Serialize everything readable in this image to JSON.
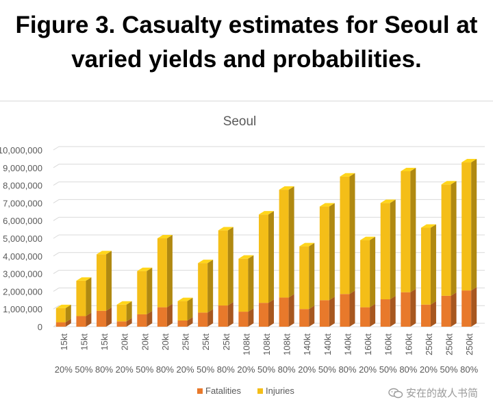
{
  "figure": {
    "title_line1": "Figure 3. Casualty estimates for Seoul at",
    "title_line2": "varied yields and probabilities."
  },
  "watermark": {
    "text": "安在的故人书简",
    "icon": "wechat-icon"
  },
  "chart_data": {
    "type": "bar",
    "stacked": true,
    "render": "3d-column",
    "title": "Seoul",
    "categories": [
      {
        "yield": "15kt",
        "probability": "20%"
      },
      {
        "yield": "15kt",
        "probability": "50%"
      },
      {
        "yield": "15kt",
        "probability": "80%"
      },
      {
        "yield": "20kt",
        "probability": "20%"
      },
      {
        "yield": "20kt",
        "probability": "50%"
      },
      {
        "yield": "20kt",
        "probability": "80%"
      },
      {
        "yield": "25kt",
        "probability": "20%"
      },
      {
        "yield": "25kt",
        "probability": "50%"
      },
      {
        "yield": "25kt",
        "probability": "80%"
      },
      {
        "yield": "108kt",
        "probability": "20%"
      },
      {
        "yield": "108kt",
        "probability": "50%"
      },
      {
        "yield": "108kt",
        "probability": "80%"
      },
      {
        "yield": "140kt",
        "probability": "20%"
      },
      {
        "yield": "140kt",
        "probability": "50%"
      },
      {
        "yield": "140kt",
        "probability": "80%"
      },
      {
        "yield": "160kt",
        "probability": "20%"
      },
      {
        "yield": "160kt",
        "probability": "50%"
      },
      {
        "yield": "160kt",
        "probability": "80%"
      },
      {
        "yield": "250kt",
        "probability": "20%"
      },
      {
        "yield": "250kt",
        "probability": "50%"
      },
      {
        "yield": "250kt",
        "probability": "80%"
      }
    ],
    "series": [
      {
        "name": "Fatalities",
        "color": "#e8792b",
        "values": [
          250000,
          600000,
          900000,
          300000,
          700000,
          1100000,
          350000,
          800000,
          1200000,
          850000,
          1350000,
          1650000,
          1000000,
          1500000,
          1850000,
          1100000,
          1550000,
          1950000,
          1250000,
          1750000,
          2050000
        ]
      },
      {
        "name": "Injuries",
        "color": "#f4be18",
        "values": [
          800000,
          2000000,
          3200000,
          950000,
          2450000,
          3900000,
          1100000,
          2800000,
          4250000,
          3000000,
          5000000,
          6100000,
          3550000,
          5300000,
          6650000,
          3800000,
          5450000,
          6850000,
          4350000,
          6300000,
          7250000
        ]
      }
    ],
    "ylim": [
      0,
      10000000
    ],
    "ytick_labels": [
      "0",
      "1,000,000",
      "2,000,000",
      "3,000,000",
      "4,000,000",
      "5,000,000",
      "6,000,000",
      "7,000,000",
      "8,000,000",
      "9,000,000",
      "10,000,000"
    ],
    "grid": true,
    "legend_position": "bottom"
  }
}
